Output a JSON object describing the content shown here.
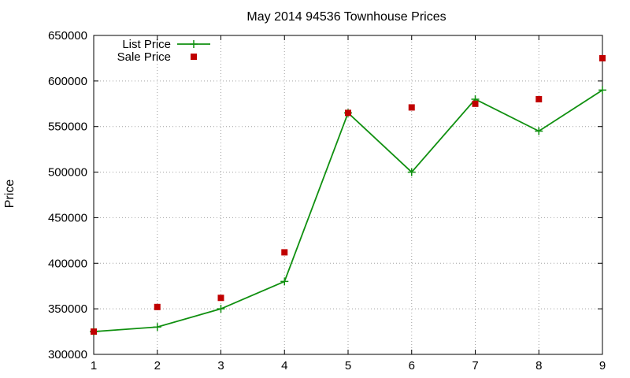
{
  "chart_data": {
    "type": "line",
    "title": "May 2014 94536 Townhouse Prices",
    "xlabel": "",
    "ylabel": "Price",
    "x": [
      1,
      2,
      3,
      4,
      5,
      6,
      7,
      8,
      9
    ],
    "xlim": [
      1,
      9
    ],
    "ylim": [
      300000,
      650000
    ],
    "xticks": [
      "1",
      "2",
      "3",
      "4",
      "5",
      "6",
      "7",
      "8",
      "9"
    ],
    "yticks": [
      "300000",
      "350000",
      "400000",
      "450000",
      "500000",
      "550000",
      "600000",
      "650000"
    ],
    "grid": true,
    "legend_position": "top-left",
    "series": [
      {
        "name": "List Price",
        "style": "line-with-plus-markers",
        "color": "#109010",
        "values": [
          325000,
          330000,
          350000,
          380000,
          565000,
          500000,
          580000,
          545000,
          590000
        ]
      },
      {
        "name": "Sale Price",
        "style": "square-markers",
        "color": "#c00000",
        "values": [
          325000,
          352000,
          362000,
          412000,
          565000,
          571000,
          575000,
          580000,
          625000
        ]
      }
    ]
  }
}
